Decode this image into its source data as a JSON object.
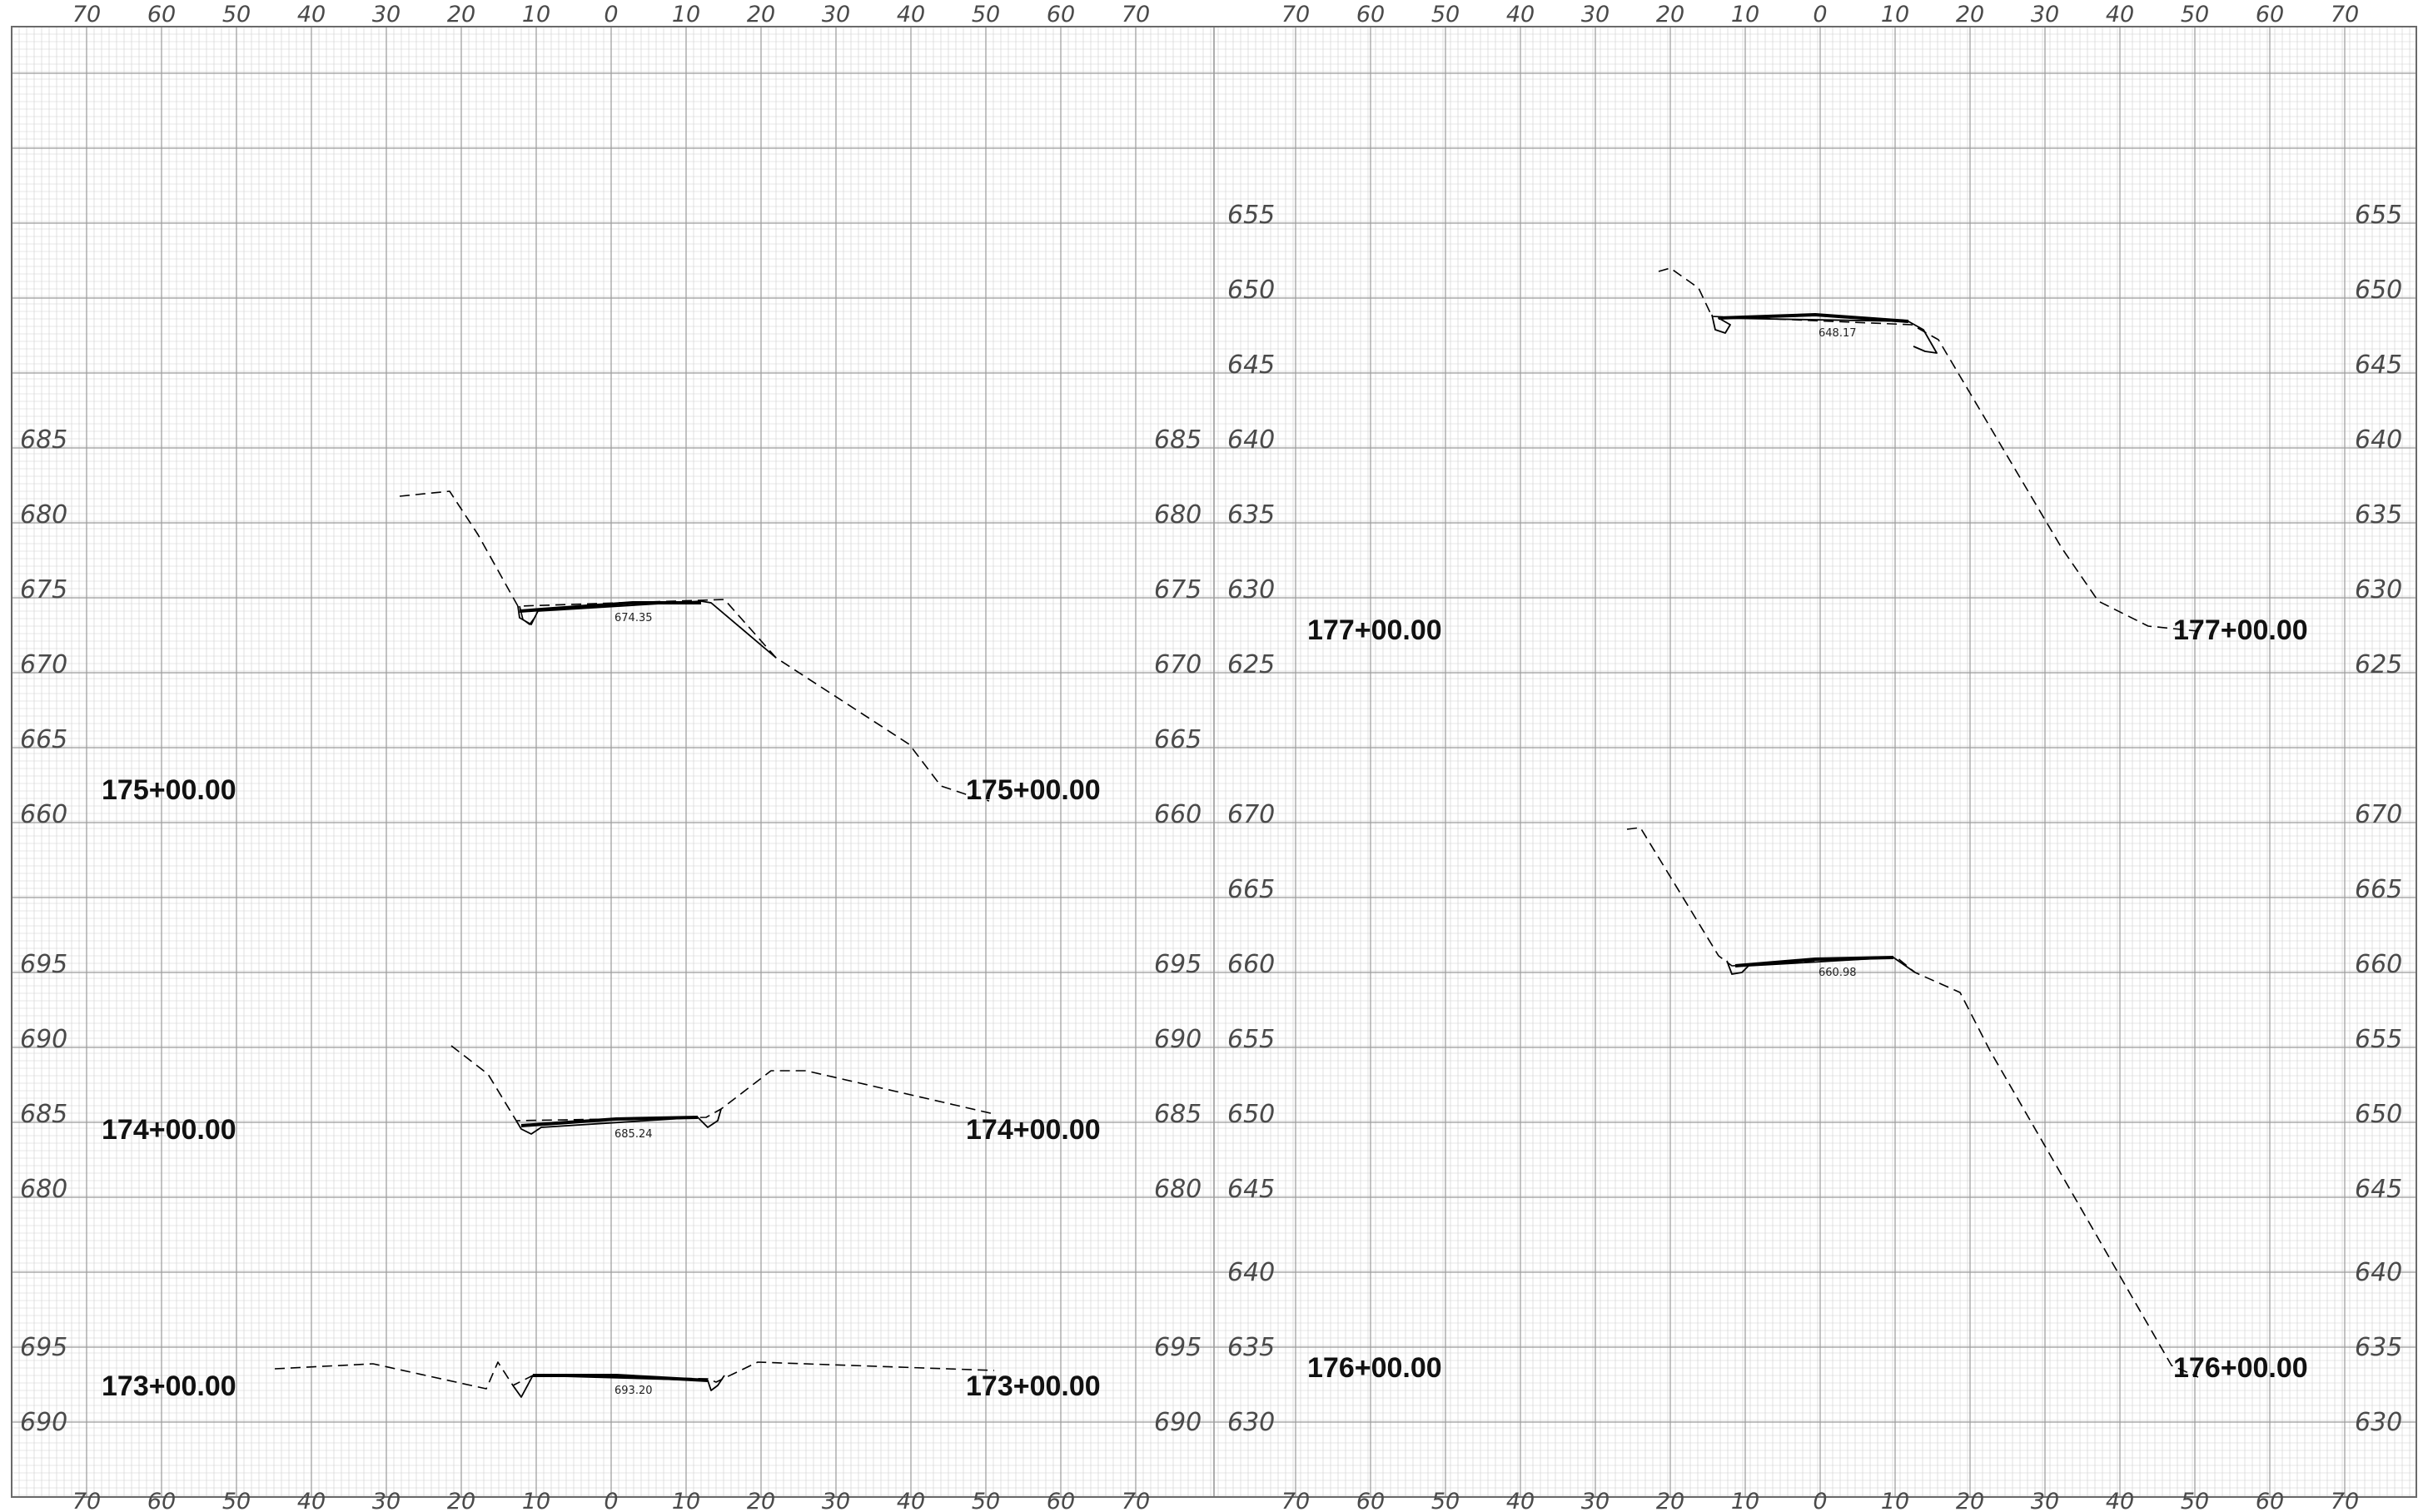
{
  "offsets_top": [
    "70",
    "60",
    "50",
    "40",
    "30",
    "20",
    "10",
    "0",
    "10",
    "20",
    "30",
    "40",
    "50",
    "60",
    "70"
  ],
  "offsets_bottom": [
    "70",
    "60",
    "50",
    "40",
    "30",
    "20",
    "10",
    "0",
    "10",
    "20",
    "30",
    "40",
    "50",
    "60",
    "70"
  ],
  "left_panel": {
    "sections": [
      {
        "station": "175+00.00",
        "grade_label": "674.35",
        "elev_labels": [
          "685",
          "680",
          "675",
          "670",
          "665",
          "660"
        ]
      },
      {
        "station": "174+00.00",
        "grade_label": "685.24",
        "elev_labels": [
          "695",
          "690",
          "685",
          "680"
        ]
      },
      {
        "station": "173+00.00",
        "grade_label": "693.20",
        "elev_labels": [
          "695",
          "690"
        ]
      }
    ]
  },
  "right_panel": {
    "sections": [
      {
        "station": "177+00.00",
        "grade_label": "648.17",
        "elev_labels": [
          "655",
          "650",
          "645",
          "640",
          "635",
          "630",
          "625"
        ]
      },
      {
        "station": "176+00.00",
        "grade_label": "660.98",
        "elev_labels": [
          "670",
          "665",
          "660",
          "655",
          "650",
          "645",
          "640",
          "635",
          "630"
        ]
      }
    ]
  },
  "colors": {
    "grid_major": "#9a9a9a",
    "grid_minor": "#cfcfcf",
    "line": "#000000"
  }
}
